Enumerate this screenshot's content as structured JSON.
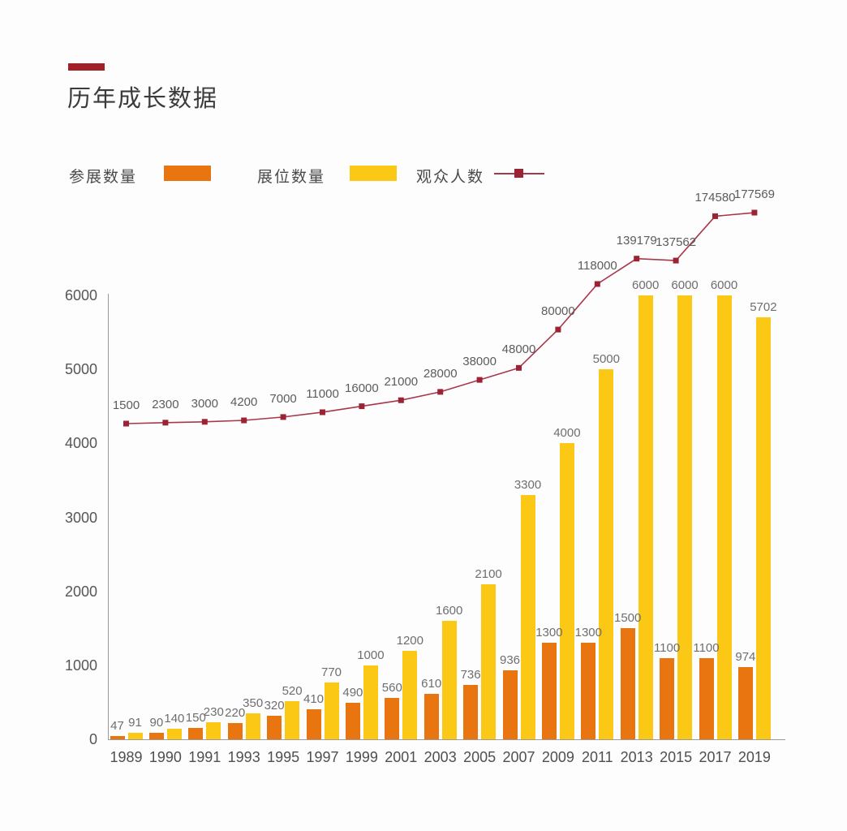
{
  "page": {
    "title": "历年成长数据"
  },
  "colors": {
    "accent_red": "#a02227",
    "exhibitors_orange": "#e8750f",
    "booths_yellow": "#fac815",
    "visitors_line": "#a8374a",
    "visitors_marker": "#9c2333",
    "axis_gray": "#9a9a9a"
  },
  "legend": {
    "items": [
      {
        "label": "参展数量",
        "type": "bar",
        "color": "#e8750f"
      },
      {
        "label": "展位数量",
        "type": "bar",
        "color": "#fac815"
      },
      {
        "label": "观众人数",
        "type": "line",
        "color": "#a8374a",
        "marker_color": "#9c2333"
      }
    ]
  },
  "chart_data": {
    "type": "bar",
    "subtype": "grouped bars with overlaid line (secondary scale)",
    "title": "历年成长数据",
    "xlabel": "",
    "ylabel": "",
    "grid": false,
    "legend_position": "top",
    "categories": [
      "1989",
      "1990",
      "1991",
      "1993",
      "1995",
      "1997",
      "1999",
      "2001",
      "2003",
      "2005",
      "2007",
      "2009",
      "2011",
      "2013",
      "2015",
      "2017",
      "2019"
    ],
    "y_axis": {
      "ticks": [
        0,
        1000,
        2000,
        3000,
        4000,
        5000,
        6000
      ],
      "min": 0,
      "max": 6000
    },
    "series": [
      {
        "name": "参展数量",
        "type": "bar",
        "color": "#e8750f",
        "values": [
          47,
          90,
          150,
          220,
          320,
          410,
          490,
          560,
          610,
          736,
          936,
          1300,
          1300,
          1500,
          1100,
          1100,
          974
        ]
      },
      {
        "name": "展位数量",
        "type": "bar",
        "color": "#fac815",
        "values": [
          91,
          140,
          230,
          350,
          520,
          770,
          1000,
          1200,
          1600,
          2100,
          3300,
          4000,
          5000,
          6000,
          6000,
          6000,
          5702
        ]
      },
      {
        "name": "观众人数",
        "type": "line",
        "color": "#a8374a",
        "values": [
          1500,
          2300,
          3000,
          4200,
          7000,
          11000,
          16000,
          21000,
          28000,
          38000,
          48000,
          80000,
          118000,
          139179,
          137562,
          174580,
          177569
        ]
      }
    ]
  }
}
